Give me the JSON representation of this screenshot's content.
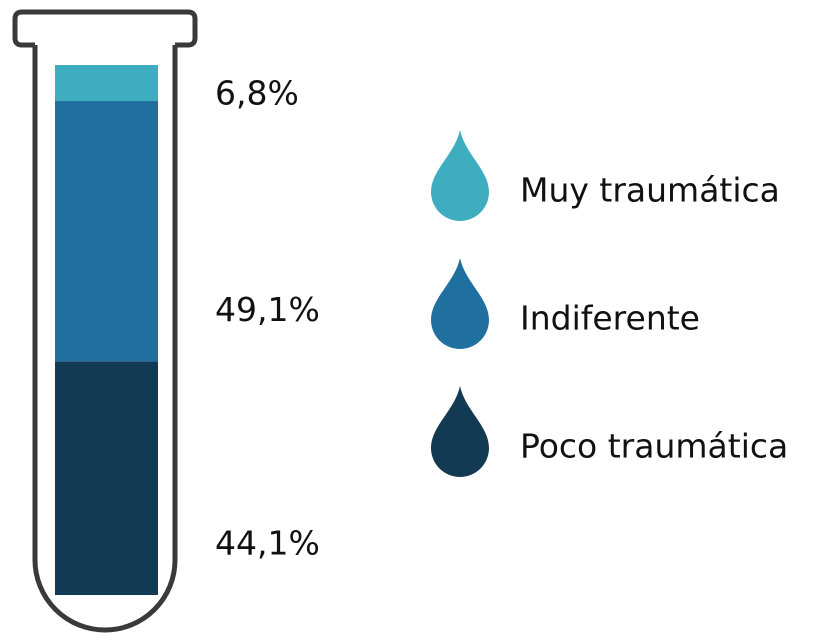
{
  "chart_data": {
    "type": "bar",
    "stacked": true,
    "ylim": [
      0,
      100
    ],
    "series": [
      {
        "name": "Muy traumática",
        "color": "#3fadc0",
        "values": [
          6.8
        ],
        "value_labels": [
          "6,8%"
        ]
      },
      {
        "name": "Indiferente",
        "color": "#1f6f9f",
        "values": [
          49.1
        ],
        "value_labels": [
          "49,1%"
        ]
      },
      {
        "name": "Poco traumática",
        "color": "#123a52",
        "values": [
          44.1
        ],
        "value_labels": [
          "44,1%"
        ]
      }
    ]
  }
}
